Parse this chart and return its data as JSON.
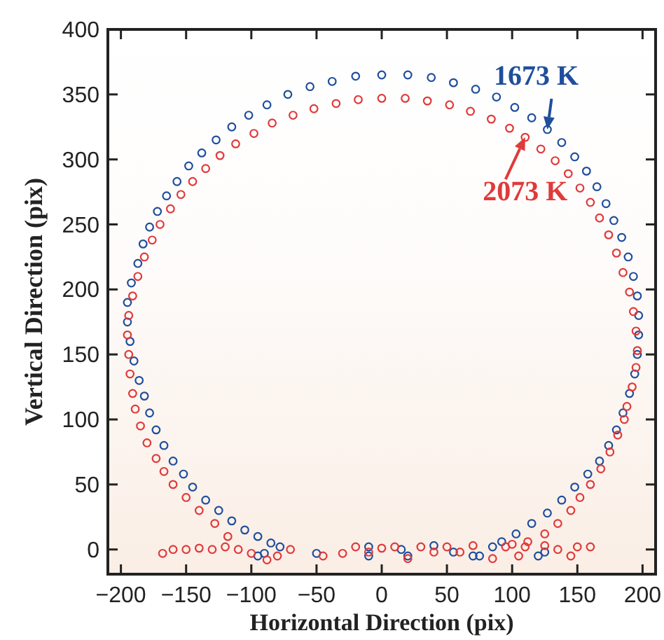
{
  "chart_data": {
    "type": "scatter",
    "xlabel": "Horizontal Direction (pix)",
    "ylabel": "Vertical Direction (pix)",
    "xlim": [
      -210,
      210
    ],
    "ylim": [
      -19,
      400
    ],
    "xticks": [
      -200,
      -150,
      -100,
      -50,
      0,
      50,
      100,
      150,
      200
    ],
    "yticks": [
      0,
      50,
      100,
      150,
      200,
      250,
      300,
      350,
      400
    ],
    "grid": false,
    "marker": "circle",
    "annotations": [
      {
        "text": "1673 K",
        "x": 127,
        "y": 323
      },
      {
        "text": "2073 K",
        "x": 110,
        "y": 317
      }
    ],
    "series": [
      {
        "color": "#1f4e9c",
        "x": [
          -78,
          -85,
          -95,
          -105,
          -115,
          -125,
          -135,
          -145,
          -152,
          -160,
          -167,
          -173,
          -178,
          -182,
          -186,
          -190,
          -193,
          -195,
          -195,
          -192,
          -187,
          -183,
          -178,
          -172,
          -165,
          -157,
          -148,
          -138,
          -127,
          -115,
          -102,
          -88,
          -72,
          -55,
          -38,
          -20,
          0,
          20,
          38,
          55,
          72,
          88,
          102,
          115,
          127,
          138,
          148,
          157,
          165,
          172,
          178,
          184,
          189,
          193,
          196,
          197,
          197,
          196,
          194,
          190,
          185,
          180,
          174,
          167,
          158,
          148,
          138,
          127,
          115,
          103,
          92,
          85,
          -95,
          -90,
          -50,
          -10,
          -10,
          15,
          20,
          40,
          55,
          70,
          75,
          120,
          125
        ],
        "values": [
          2,
          5,
          10,
          15,
          22,
          30,
          38,
          48,
          58,
          68,
          80,
          92,
          105,
          118,
          130,
          145,
          160,
          175,
          190,
          205,
          220,
          235,
          248,
          260,
          272,
          283,
          295,
          305,
          315,
          325,
          334,
          342,
          350,
          356,
          360,
          364,
          365,
          365,
          363,
          359,
          354,
          348,
          340,
          332,
          323,
          313,
          302,
          291,
          279,
          266,
          253,
          240,
          225,
          210,
          195,
          180,
          165,
          150,
          135,
          120,
          105,
          92,
          80,
          68,
          58,
          48,
          38,
          28,
          20,
          12,
          6,
          2,
          -5,
          -3,
          -3,
          -5,
          2,
          0,
          -5,
          3,
          -2,
          -5,
          -5,
          -5,
          -2
        ]
      },
      {
        "color": "#e03a3a",
        "x": [
          -168,
          -160,
          -150,
          -140,
          -130,
          -120,
          -110,
          -100,
          -88,
          -80,
          -70,
          -45,
          -30,
          -20,
          -10,
          0,
          10,
          20,
          30,
          40,
          50,
          60,
          70,
          85,
          95,
          105,
          110,
          125,
          135,
          145,
          150,
          160,
          -118,
          -128,
          -140,
          -150,
          -160,
          -167,
          -173,
          -180,
          -185,
          -189,
          -191,
          -193,
          -194,
          -195,
          -194,
          -191,
          -187,
          -182,
          -176,
          -170,
          -162,
          -154,
          -145,
          -135,
          -124,
          -112,
          -98,
          -84,
          -68,
          -52,
          -35,
          -18,
          0,
          18,
          35,
          52,
          68,
          84,
          98,
          110,
          122,
          133,
          143,
          152,
          160,
          167,
          174,
          180,
          185,
          190,
          193,
          195,
          196,
          195,
          192,
          188,
          186,
          181,
          175,
          168,
          160,
          152,
          145,
          135,
          125,
          112,
          100
        ],
        "values": [
          -3,
          0,
          0,
          1,
          0,
          2,
          0,
          -3,
          -8,
          -5,
          0,
          -5,
          -3,
          2,
          -2,
          1,
          2,
          -7,
          2,
          -2,
          2,
          -2,
          3,
          -7,
          2,
          -5,
          2,
          3,
          0,
          -5,
          2,
          2,
          10,
          20,
          30,
          40,
          50,
          60,
          70,
          82,
          95,
          108,
          120,
          135,
          150,
          165,
          180,
          195,
          210,
          225,
          238,
          250,
          262,
          273,
          283,
          293,
          303,
          312,
          320,
          328,
          334,
          339,
          343,
          346,
          347,
          347,
          345,
          342,
          337,
          331,
          324,
          317,
          308,
          299,
          289,
          278,
          267,
          255,
          242,
          228,
          213,
          198,
          183,
          168,
          153,
          140,
          125,
          110,
          100,
          88,
          75,
          62,
          50,
          40,
          30,
          20,
          12,
          6,
          4
        ]
      }
    ]
  }
}
